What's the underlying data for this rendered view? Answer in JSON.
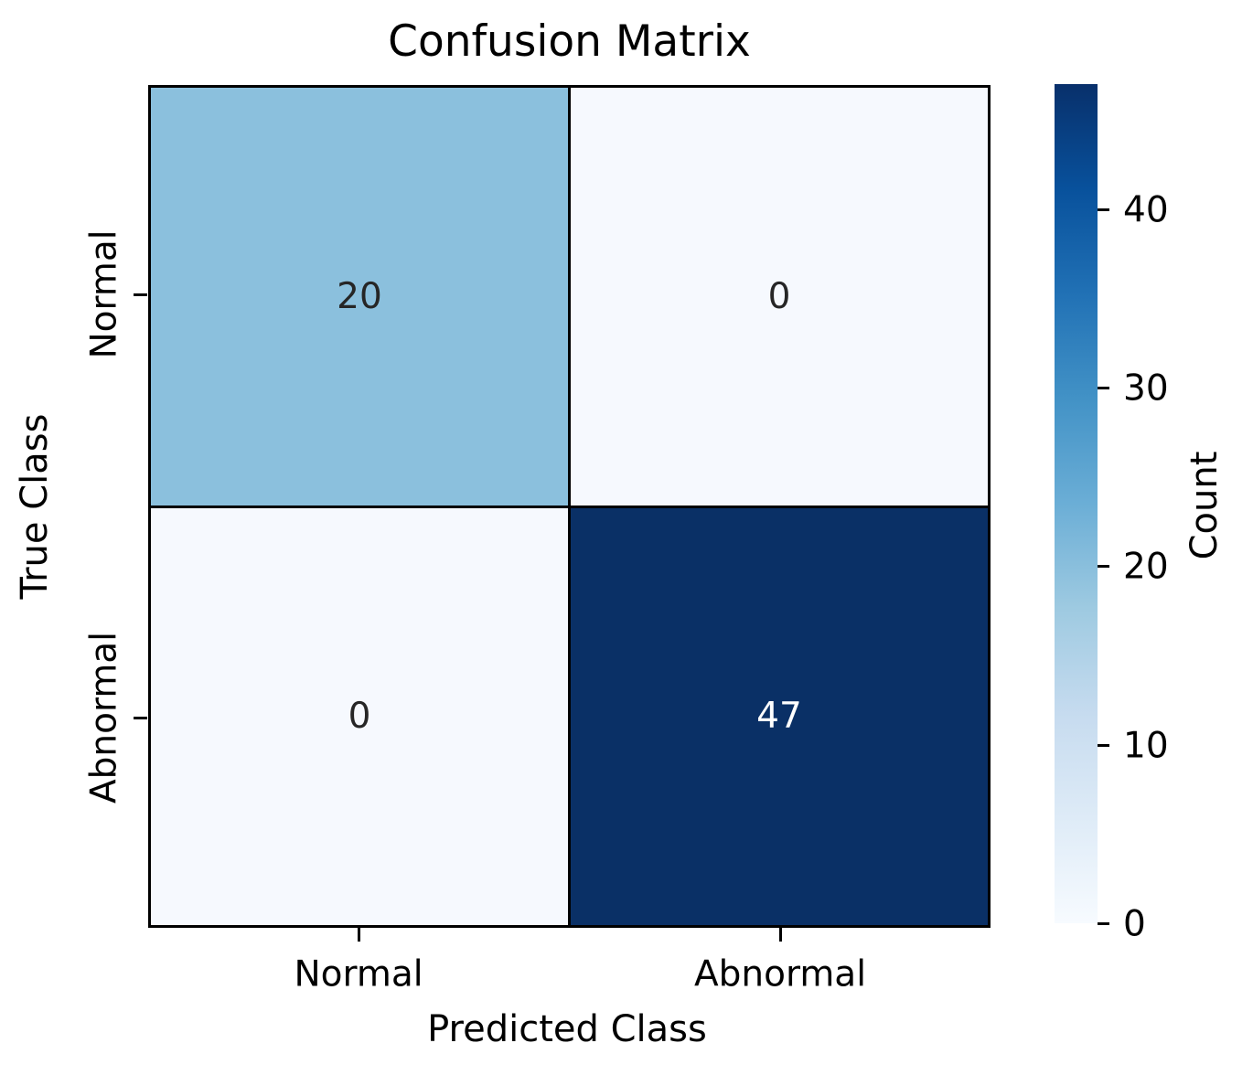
{
  "title": "Confusion Matrix",
  "axes": {
    "x_label": "Predicted Class",
    "y_label": "True Class",
    "x_tick_labels": [
      "Normal",
      "Abnormal"
    ],
    "y_tick_labels": [
      "Normal",
      "Abnormal"
    ]
  },
  "colorbar": {
    "label": "Count",
    "tick_labels": [
      "0",
      "10",
      "20",
      "30",
      "40"
    ]
  },
  "chart_data": {
    "type": "heatmap",
    "title": "Confusion Matrix",
    "xlabel": "Predicted Class",
    "ylabel": "True Class",
    "x_categories": [
      "Normal",
      "Abnormal"
    ],
    "y_categories": [
      "Normal",
      "Abnormal"
    ],
    "values": [
      [
        20,
        0
      ],
      [
        0,
        47
      ]
    ],
    "vmin": 0,
    "vmax": 47,
    "colormap": "Blues",
    "colorbar_label": "Count",
    "colorbar_ticks": [
      0,
      10,
      20,
      30,
      40
    ],
    "cell_colors": [
      [
        "#8bc0dd",
        "#f6f9fe"
      ],
      [
        "#f6f9fe",
        "#0a3066"
      ]
    ],
    "cell_text_colors": [
      [
        "#262626",
        "#262626"
      ],
      [
        "#262626",
        "#ffffff"
      ]
    ],
    "colormap_stops": [
      "#f7fbff",
      "#deebf7",
      "#c6dbef",
      "#9ecae1",
      "#6baed6",
      "#4292c6",
      "#2171b5",
      "#08519c",
      "#08306b"
    ],
    "grid_line_color": "#000000",
    "background": "#ffffff"
  }
}
